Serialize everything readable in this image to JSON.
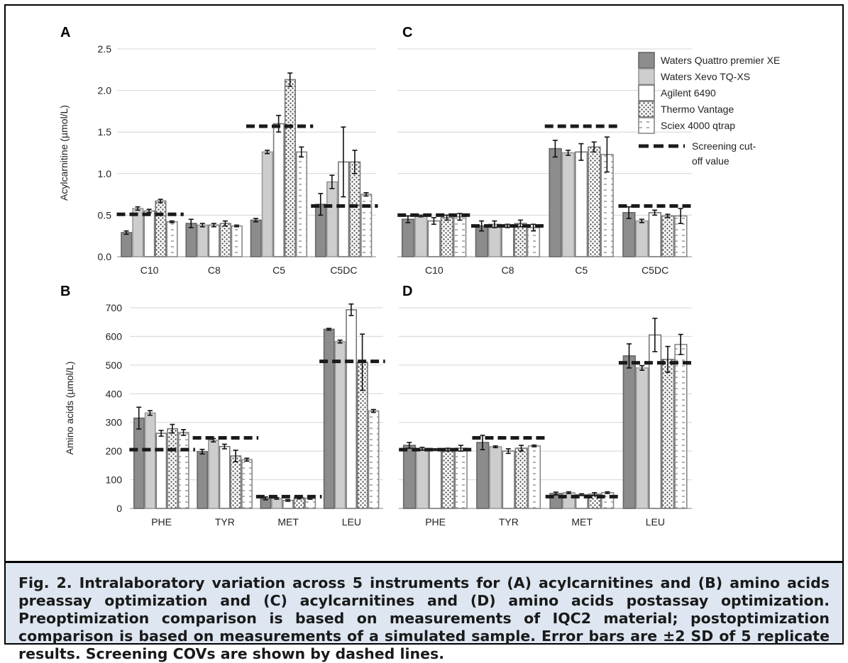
{
  "legend": {
    "series": [
      {
        "name": "Waters Quattro premier XE",
        "pattern": "dark"
      },
      {
        "name": "Waters Xevo TQ-XS",
        "pattern": "light"
      },
      {
        "name": "Agilent 6490",
        "pattern": "white"
      },
      {
        "name": "Thermo Vantage",
        "pattern": "dots"
      },
      {
        "name": "Sciex 4000 qtrap",
        "pattern": "dashes"
      }
    ],
    "cutoff_label_line1": "Screening cut-",
    "cutoff_label_line2": "off value"
  },
  "colors": {
    "dark": "#8c8c8c",
    "light": "#cdcdcd",
    "white": "#ffffff",
    "cutoff": "#1a1a1a"
  },
  "caption": "Fig. 2. Intralaboratory variation across 5 instruments for (A) acylcarnitines and (B) amino acids preassay optimization and (C) acylcarnitines and (D) amino acids postassay optimization. Preoptimization comparison is based on measurements of IQC2 material; postoptimization comparison is based on measurements of a simulated sample. Error bars are ±2 SD of 5 replicate results. Screening COVs are shown by dashed lines.",
  "chart_data": [
    {
      "panel": "A",
      "type": "bar",
      "ylabel": "Acylcarnitine (µmol/L)",
      "ylim": [
        0,
        2.5
      ],
      "yticks": [
        "0.0",
        "0.5",
        "1.0",
        "1.5",
        "2.0",
        "2.5"
      ],
      "categories": [
        "C10",
        "C8",
        "C5",
        "C5DC"
      ],
      "series": [
        {
          "name": "Waters Quattro premier XE",
          "values": [
            0.29,
            0.4,
            0.44,
            0.63
          ],
          "errors": [
            0.02,
            0.05,
            0.02,
            0.13
          ]
        },
        {
          "name": "Waters Xevo TQ-XS",
          "values": [
            0.58,
            0.38,
            1.26,
            0.9
          ],
          "errors": [
            0.02,
            0.02,
            0.02,
            0.08
          ]
        },
        {
          "name": "Agilent 6490",
          "values": [
            0.55,
            0.38,
            1.6,
            1.14
          ],
          "errors": [
            0.02,
            0.02,
            0.1,
            0.42
          ]
        },
        {
          "name": "Thermo Vantage",
          "values": [
            0.67,
            0.4,
            2.13,
            1.14
          ],
          "errors": [
            0.02,
            0.03,
            0.08,
            0.14
          ]
        },
        {
          "name": "Sciex 4000 qtrap",
          "values": [
            0.42,
            0.37,
            1.26,
            0.75
          ],
          "errors": [
            0.01,
            0.01,
            0.06,
            0.02
          ]
        }
      ],
      "cutoffs": [
        0.51,
        null,
        1.57,
        0.61
      ]
    },
    {
      "panel": "B",
      "type": "bar",
      "ylabel": "Amino acids (µmol/L)",
      "ylim": [
        0,
        700
      ],
      "yticks": [
        "0",
        "100",
        "200",
        "300",
        "400",
        "500",
        "600",
        "700"
      ],
      "categories": [
        "PHE",
        "TYR",
        "MET",
        "LEU"
      ],
      "series": [
        {
          "name": "Waters Quattro premier XE",
          "values": [
            315,
            198,
            35,
            625
          ],
          "errors": [
            38,
            8,
            5,
            3
          ]
        },
        {
          "name": "Waters Xevo TQ-XS",
          "values": [
            333,
            238,
            35,
            582
          ],
          "errors": [
            8,
            6,
            3,
            5
          ]
        },
        {
          "name": "Agilent 6490",
          "values": [
            262,
            216,
            28,
            693
          ],
          "errors": [
            10,
            8,
            3,
            20
          ]
        },
        {
          "name": "Thermo Vantage",
          "values": [
            278,
            183,
            38,
            510
          ],
          "errors": [
            15,
            20,
            5,
            98
          ]
        },
        {
          "name": "Sciex 4000 qtrap",
          "values": [
            265,
            170,
            35,
            340
          ],
          "errors": [
            10,
            5,
            3,
            5
          ]
        }
      ],
      "cutoffs": [
        205,
        246,
        41,
        513
      ]
    },
    {
      "panel": "C",
      "type": "bar",
      "ylabel": "",
      "ylim": [
        0,
        2.5
      ],
      "categories": [
        "C10",
        "C8",
        "C5",
        "C5DC"
      ],
      "series": [
        {
          "name": "Waters Quattro premier XE",
          "values": [
            0.45,
            0.37,
            1.3,
            0.53
          ],
          "errors": [
            0.04,
            0.06,
            0.1,
            0.07
          ]
        },
        {
          "name": "Waters Xevo TQ-XS",
          "values": [
            0.49,
            0.39,
            1.25,
            0.43
          ],
          "errors": [
            0.01,
            0.04,
            0.03,
            0.02
          ]
        },
        {
          "name": "Agilent 6490",
          "values": [
            0.43,
            0.37,
            1.26,
            0.53
          ],
          "errors": [
            0.04,
            0.02,
            0.1,
            0.03
          ]
        },
        {
          "name": "Thermo Vantage",
          "values": [
            0.47,
            0.4,
            1.32,
            0.49
          ],
          "errors": [
            0.03,
            0.04,
            0.06,
            0.02
          ]
        },
        {
          "name": "Sciex 4000 qtrap",
          "values": [
            0.48,
            0.35,
            1.23,
            0.49
          ],
          "errors": [
            0.04,
            0.04,
            0.21,
            0.09
          ]
        }
      ],
      "cutoffs": [
        0.5,
        0.37,
        1.57,
        0.61
      ]
    },
    {
      "panel": "D",
      "type": "bar",
      "ylabel": "",
      "ylim": [
        0,
        700
      ],
      "categories": [
        "PHE",
        "TYR",
        "MET",
        "LEU"
      ],
      "series": [
        {
          "name": "Waters Quattro premier XE",
          "values": [
            220,
            230,
            52,
            532
          ],
          "errors": [
            10,
            25,
            5,
            42
          ]
        },
        {
          "name": "Waters Xevo TQ-XS",
          "values": [
            208,
            215,
            55,
            490
          ],
          "errors": [
            5,
            3,
            3,
            8
          ]
        },
        {
          "name": "Agilent 6490",
          "values": [
            205,
            200,
            48,
            605
          ],
          "errors": [
            3,
            8,
            3,
            58
          ]
        },
        {
          "name": "Thermo Vantage",
          "values": [
            205,
            210,
            50,
            520
          ],
          "errors": [
            5,
            10,
            5,
            45
          ]
        },
        {
          "name": "Sciex 4000 qtrap",
          "values": [
            210,
            218,
            55,
            572
          ],
          "errors": [
            10,
            3,
            3,
            35
          ]
        }
      ],
      "cutoffs": [
        205,
        246,
        41,
        508
      ]
    }
  ]
}
